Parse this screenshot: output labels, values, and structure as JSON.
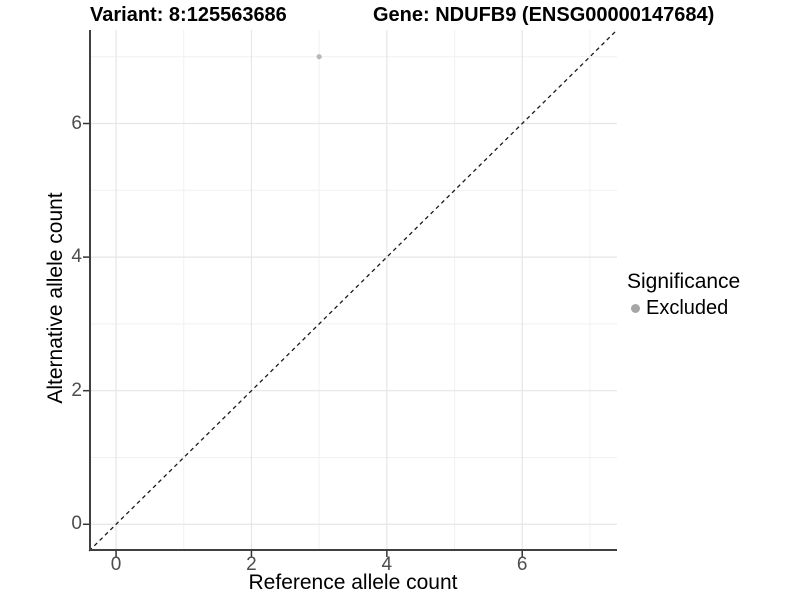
{
  "chart_data": {
    "type": "scatter",
    "titles": {
      "left": "Variant: 8:125563686",
      "right": "Gene: NDUFB9 (ENSG00000147684)"
    },
    "xlabel": "Reference allele count",
    "ylabel": "Alternative allele count",
    "xlim": [
      -0.4,
      7.4
    ],
    "ylim": [
      -0.4,
      7.4
    ],
    "xticks": {
      "major": [
        0,
        2,
        4,
        6
      ],
      "minor": [
        1,
        3,
        5,
        7
      ]
    },
    "yticks": {
      "major": [
        0,
        2,
        4,
        6
      ],
      "minor": [
        1,
        3,
        5,
        7
      ]
    },
    "grid": {
      "major_color": "#e6e6e6",
      "minor_color": "#f1f1f1",
      "background": "#ffffff"
    },
    "axis": {
      "line_color": "#404040",
      "tick_color": "#333333",
      "tick_label_color": "#4d4d4d"
    },
    "reference_line": {
      "slope": 1,
      "intercept": 0,
      "style": "dashed",
      "color": "#1a1a1a"
    },
    "series": [
      {
        "name": "Excluded",
        "color": "#b8b8b8",
        "points": [
          {
            "x": 3,
            "y": 7
          }
        ]
      }
    ],
    "legend": {
      "title": "Significance",
      "position": "right",
      "items": [
        {
          "label": "Excluded",
          "color": "#a6a6a6"
        }
      ]
    }
  }
}
